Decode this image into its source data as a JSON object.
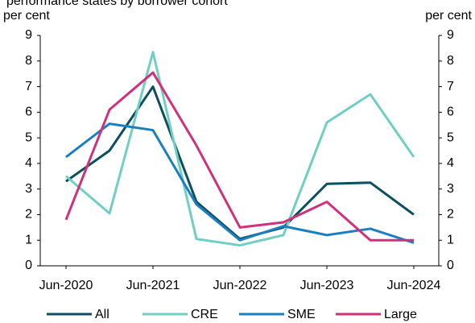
{
  "chart_data": {
    "type": "line",
    "title": "performance states by borrower cohort",
    "ylabel": "per cent",
    "y2label": "per cent",
    "categories": [
      "Jun-2020",
      null,
      "Jun-2021",
      null,
      "Jun-2022",
      null,
      "Jun-2023",
      null,
      "Jun-2024"
    ],
    "series": [
      {
        "name": "All",
        "color": "#0d4f5f",
        "values": [
          3.3,
          4.5,
          7.0,
          2.5,
          1.05,
          1.5,
          3.2,
          3.25,
          2.0
        ]
      },
      {
        "name": "CRE",
        "color": "#6fcfc3",
        "values": [
          3.5,
          2.05,
          8.35,
          1.05,
          0.8,
          1.2,
          5.6,
          6.7,
          4.25
        ]
      },
      {
        "name": "SME",
        "color": "#1a7fc1",
        "values": [
          4.25,
          5.55,
          5.3,
          2.4,
          1.0,
          1.55,
          1.2,
          1.45,
          0.9
        ]
      },
      {
        "name": "Large",
        "color": "#d1307a",
        "values": [
          1.8,
          6.1,
          7.55,
          4.7,
          1.5,
          1.7,
          2.5,
          1.0,
          1.0
        ]
      }
    ],
    "ylim": [
      0,
      9
    ],
    "yticks": [
      0,
      1,
      2,
      3,
      4,
      5,
      6,
      7,
      8,
      9
    ],
    "y2lim": [
      0,
      9
    ],
    "y2ticks": [
      0,
      1,
      2,
      3,
      4,
      5,
      6,
      7,
      8,
      9
    ],
    "legend": "bottom",
    "grid": false
  }
}
